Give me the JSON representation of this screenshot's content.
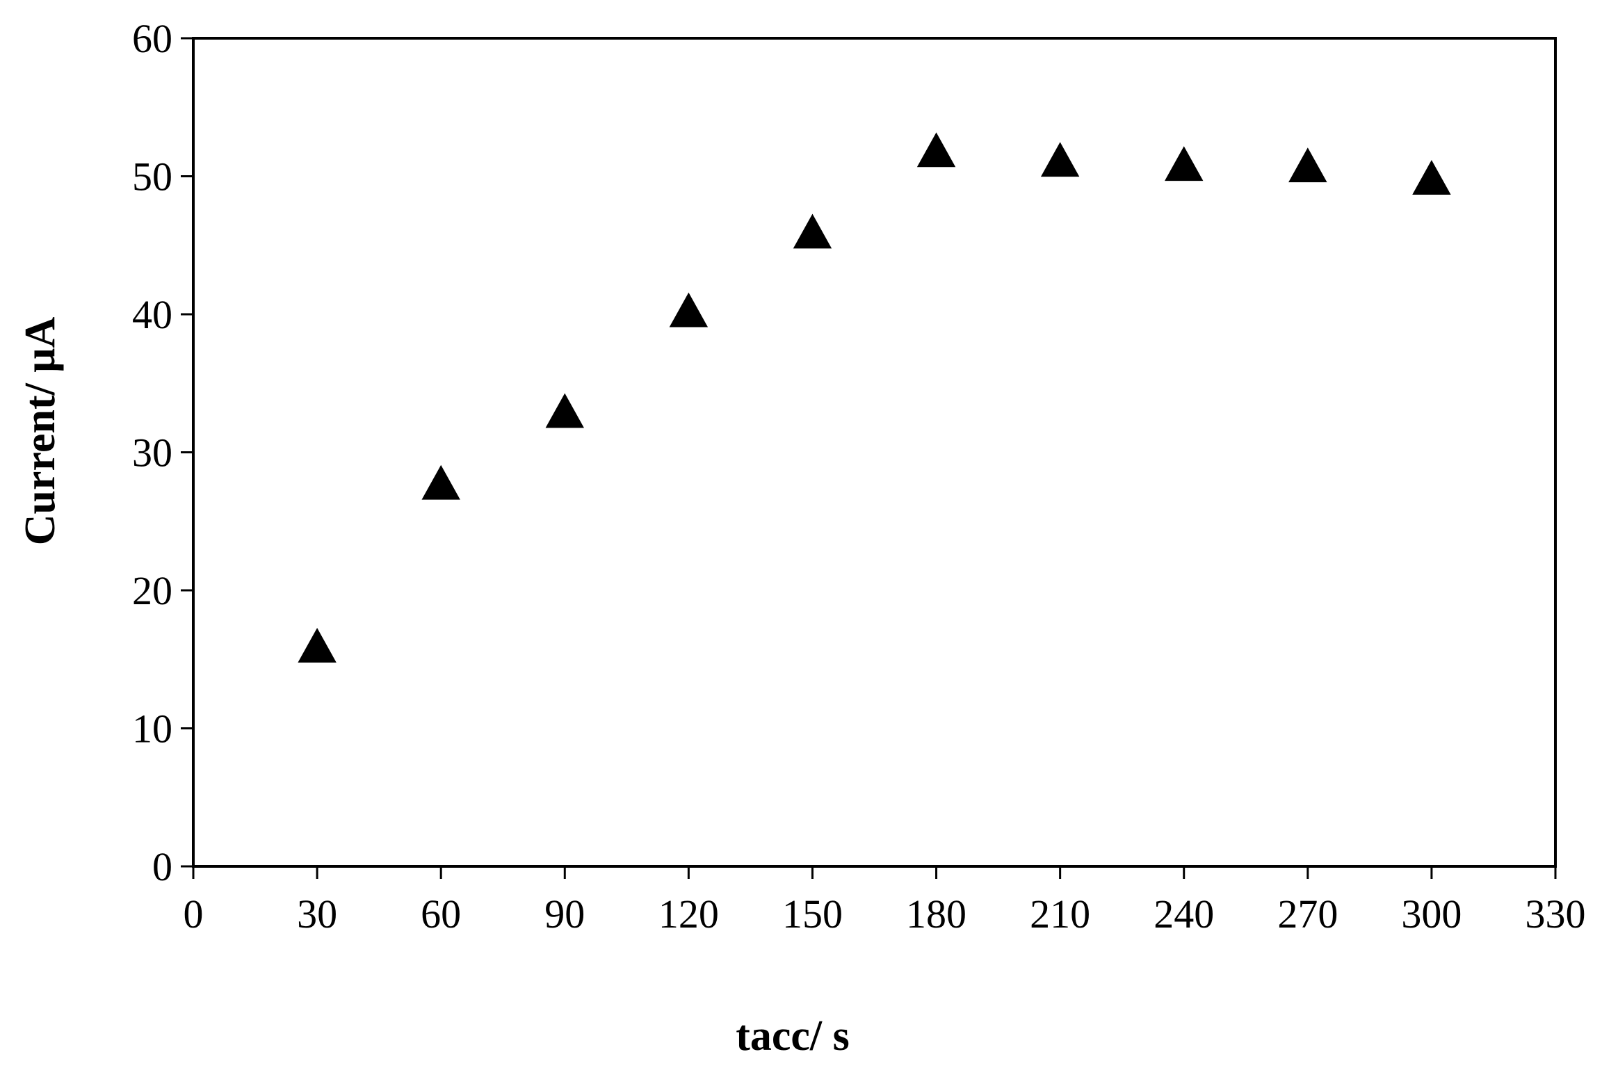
{
  "chart_data": {
    "type": "scatter",
    "xlabel": "tacc/ s",
    "ylabel": "Current/ μA",
    "xlim": [
      0,
      330
    ],
    "ylim": [
      0,
      60
    ],
    "x_ticks": [
      0,
      30,
      60,
      90,
      120,
      150,
      180,
      210,
      240,
      270,
      300,
      330
    ],
    "y_ticks": [
      0,
      10,
      20,
      30,
      40,
      50,
      60
    ],
    "grid": false,
    "legend": "none",
    "marker": "triangle",
    "marker_color": "#000000",
    "series": [
      {
        "x": [
          30,
          60,
          90,
          120,
          150,
          180,
          210,
          240,
          270,
          300
        ],
        "y": [
          15.8,
          27.6,
          32.8,
          40.1,
          45.8,
          51.7,
          51.0,
          50.7,
          50.6,
          49.7
        ]
      }
    ]
  }
}
